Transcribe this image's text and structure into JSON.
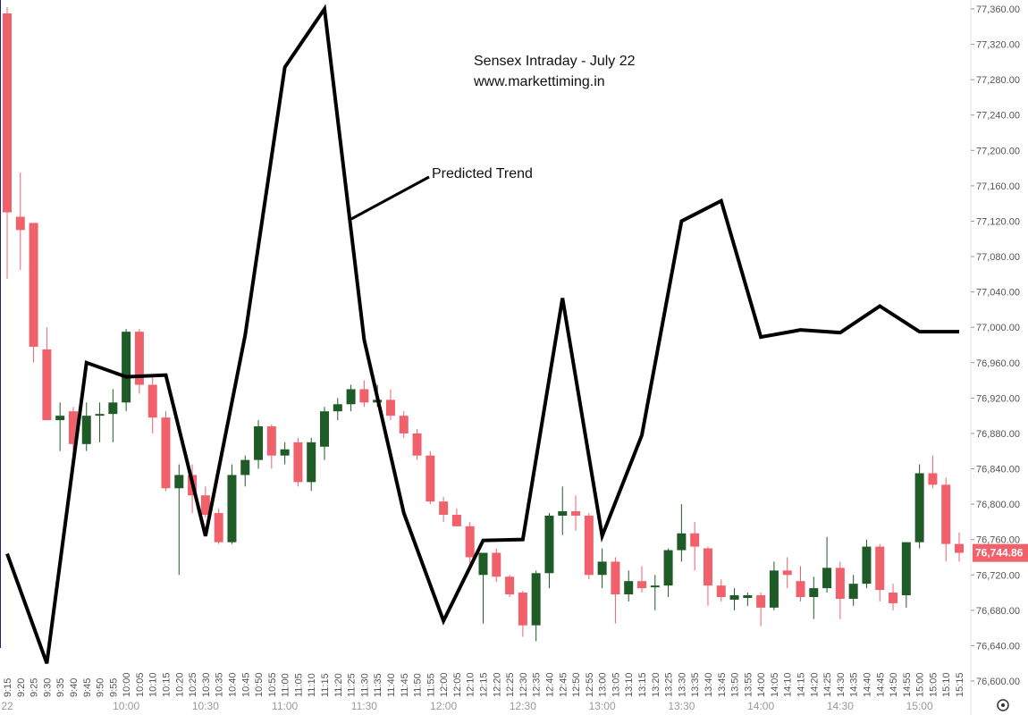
{
  "chart_data": {
    "type": "candlestick",
    "title": "Sensex Intraday - July 22",
    "subtitle": "www.markettiming.in",
    "categories": [
      "9:15",
      "9:20",
      "9:25",
      "9:30",
      "9:35",
      "9:40",
      "9:45",
      "9:50",
      "9:55",
      "10:00",
      "10:05",
      "10:10",
      "10:15",
      "10:20",
      "10:25",
      "10:30",
      "10:35",
      "10:40",
      "10:45",
      "10:50",
      "10:55",
      "11:00",
      "11:05",
      "11:10",
      "11:15",
      "11:20",
      "11:25",
      "11:30",
      "11:35",
      "11:40",
      "11:45",
      "11:50",
      "11:55",
      "12:00",
      "12:05",
      "12:10",
      "12:15",
      "12:20",
      "12:25",
      "12:30",
      "12:35",
      "12:40",
      "12:45",
      "12:50",
      "12:55",
      "13:00",
      "13:05",
      "13:10",
      "13:15",
      "13:20",
      "13:25",
      "13:30",
      "13:35",
      "13:40",
      "13:45",
      "13:50",
      "13:55",
      "14:00",
      "14:05",
      "14:10",
      "14:15",
      "14:20",
      "14:25",
      "14:30",
      "14:35",
      "14:40",
      "14:45",
      "14:50",
      "14:55",
      "15:00",
      "15:05",
      "15:10",
      "15:15"
    ],
    "ohlc": [
      [
        77355,
        77362,
        77055,
        77130
      ],
      [
        77125,
        77175,
        77065,
        77110
      ],
      [
        77118,
        77118,
        76960,
        76978
      ],
      [
        76975,
        77000,
        76895,
        76895
      ],
      [
        76895,
        76915,
        76860,
        76900
      ],
      [
        76905,
        76910,
        76855,
        76868
      ],
      [
        76868,
        76915,
        76860,
        76900
      ],
      [
        76900,
        76915,
        76870,
        76902
      ],
      [
        76902,
        76930,
        76870,
        76915
      ],
      [
        76915,
        76998,
        76905,
        76995
      ],
      [
        76995,
        76998,
        76925,
        76935
      ],
      [
        76935,
        76945,
        76880,
        76898
      ],
      [
        76898,
        76905,
        76815,
        76818
      ],
      [
        76818,
        76845,
        76720,
        76833
      ],
      [
        76833,
        76845,
        76790,
        76810
      ],
      [
        76810,
        76820,
        76785,
        76788
      ],
      [
        76790,
        76795,
        76755,
        76757
      ],
      [
        76757,
        76845,
        76755,
        76833
      ],
      [
        76833,
        76855,
        76820,
        76850
      ],
      [
        76850,
        76895,
        76840,
        76888
      ],
      [
        76888,
        76890,
        76840,
        76855
      ],
      [
        76855,
        76870,
        76845,
        76862
      ],
      [
        76870,
        76875,
        76820,
        76825
      ],
      [
        76825,
        76875,
        76815,
        76870
      ],
      [
        76865,
        76910,
        76850,
        76905
      ],
      [
        76905,
        76920,
        76895,
        76913
      ],
      [
        76913,
        76935,
        76905,
        76930
      ],
      [
        76930,
        76940,
        76910,
        76915
      ],
      [
        76915,
        76935,
        76910,
        76918
      ],
      [
        76918,
        76930,
        76895,
        76900
      ],
      [
        76900,
        76905,
        76875,
        76880
      ],
      [
        76880,
        76885,
        76850,
        76855
      ],
      [
        76855,
        76860,
        76800,
        76803
      ],
      [
        76803,
        76808,
        76780,
        76788
      ],
      [
        76788,
        76795,
        76775,
        76775
      ],
      [
        76775,
        76780,
        76730,
        76740
      ],
      [
        76720,
        76745,
        76665,
        76745
      ],
      [
        76745,
        76750,
        76712,
        76718
      ],
      [
        76718,
        76720,
        76695,
        76698
      ],
      [
        76700,
        76702,
        76650,
        76663
      ],
      [
        76663,
        76725,
        76645,
        76722
      ],
      [
        76722,
        76790,
        76705,
        76787
      ],
      [
        76787,
        76820,
        76765,
        76792
      ],
      [
        76792,
        76810,
        76770,
        76787
      ],
      [
        76787,
        76790,
        76715,
        76720
      ],
      [
        76720,
        76750,
        76705,
        76735
      ],
      [
        76735,
        76740,
        76665,
        76698
      ],
      [
        76698,
        76725,
        76690,
        76713
      ],
      [
        76713,
        76730,
        76700,
        76705
      ],
      [
        76706,
        76720,
        76680,
        76708
      ],
      [
        76708,
        76750,
        76695,
        76748
      ],
      [
        76748,
        76800,
        76735,
        76767
      ],
      [
        76767,
        76780,
        76725,
        76752
      ],
      [
        76750,
        76752,
        76685,
        76708
      ],
      [
        76708,
        76715,
        76690,
        76695
      ],
      [
        76692,
        76705,
        76680,
        76697
      ],
      [
        76694,
        76700,
        76685,
        76697
      ],
      [
        76697,
        76700,
        76662,
        76683
      ],
      [
        76683,
        76735,
        76680,
        76725
      ],
      [
        76725,
        76740,
        76705,
        76720
      ],
      [
        76713,
        76730,
        76690,
        76695
      ],
      [
        76695,
        76718,
        76670,
        76705
      ],
      [
        76705,
        76763,
        76700,
        76728
      ],
      [
        76728,
        76735,
        76670,
        76693
      ],
      [
        76693,
        76720,
        76685,
        76710
      ],
      [
        76710,
        76760,
        76705,
        76752
      ],
      [
        76752,
        76755,
        76690,
        76703
      ],
      [
        76700,
        76710,
        76680,
        76688
      ],
      [
        76697,
        76757,
        76683,
        76757
      ],
      [
        76757,
        76845,
        76750,
        76835
      ],
      [
        76835,
        76855,
        76818,
        76822
      ],
      [
        76822,
        76830,
        76735,
        76755
      ],
      [
        76755,
        76768,
        76735,
        76745
      ]
    ],
    "up_color": "#1e5b27",
    "down_color": "#f0616b",
    "trend": {
      "name": "Predicted Trend",
      "color": "#000000",
      "x": [
        "9:15",
        "9:30",
        "9:45",
        "10:00",
        "10:15",
        "10:30",
        "10:45",
        "11:00",
        "11:15",
        "11:30",
        "11:45",
        "12:00",
        "12:15",
        "12:30",
        "12:45",
        "13:00",
        "13:15",
        "13:30",
        "13:45",
        "14:00",
        "14:15",
        "14:30",
        "14:45",
        "15:00",
        "15:15"
      ],
      "values": [
        76744,
        76620,
        76960,
        76944,
        76946,
        76764,
        76991,
        77294,
        77360,
        76986,
        76790,
        76668,
        76759,
        76760,
        77033,
        76764,
        76878,
        77120,
        77143,
        76989,
        76997,
        76994,
        77024,
        76995,
        76995
      ]
    },
    "last_price": {
      "value": 76744.86,
      "label": "76,744.86"
    },
    "bottom_labels": [
      "22",
      "10:00",
      "10:30",
      "11:00",
      "11:30",
      "12:00",
      "12:30",
      "13:00",
      "13:30",
      "14:00",
      "14:30",
      "15:00"
    ],
    "ylim": [
      76600,
      77360
    ],
    "yticks": [
      {
        "value": 76600,
        "label": "76,600.00"
      },
      {
        "value": 76640,
        "label": "76,640.00"
      },
      {
        "value": 76680,
        "label": "76,680.00"
      },
      {
        "value": 76720,
        "label": "76,720.00"
      },
      {
        "value": 76760,
        "label": "76,760.00"
      },
      {
        "value": 76800,
        "label": "76,800.00"
      },
      {
        "value": 76840,
        "label": "76,840.00"
      },
      {
        "value": 76880,
        "label": "76,880.00"
      },
      {
        "value": 76920,
        "label": "76,920.00"
      },
      {
        "value": 76960,
        "label": "76,960.00"
      },
      {
        "value": 77000,
        "label": "77,000.00"
      },
      {
        "value": 77040,
        "label": "77,040.00"
      },
      {
        "value": 77080,
        "label": "77,080.00"
      },
      {
        "value": 77120,
        "label": "77,120.00"
      },
      {
        "value": 77160,
        "label": "77,160.00"
      },
      {
        "value": 77200,
        "label": "77,200.00"
      },
      {
        "value": 77240,
        "label": "77,240.00"
      },
      {
        "value": 77280,
        "label": "77,280.00"
      },
      {
        "value": 77320,
        "label": "77,320.00"
      },
      {
        "value": 77360,
        "label": "77,360.00"
      }
    ]
  }
}
